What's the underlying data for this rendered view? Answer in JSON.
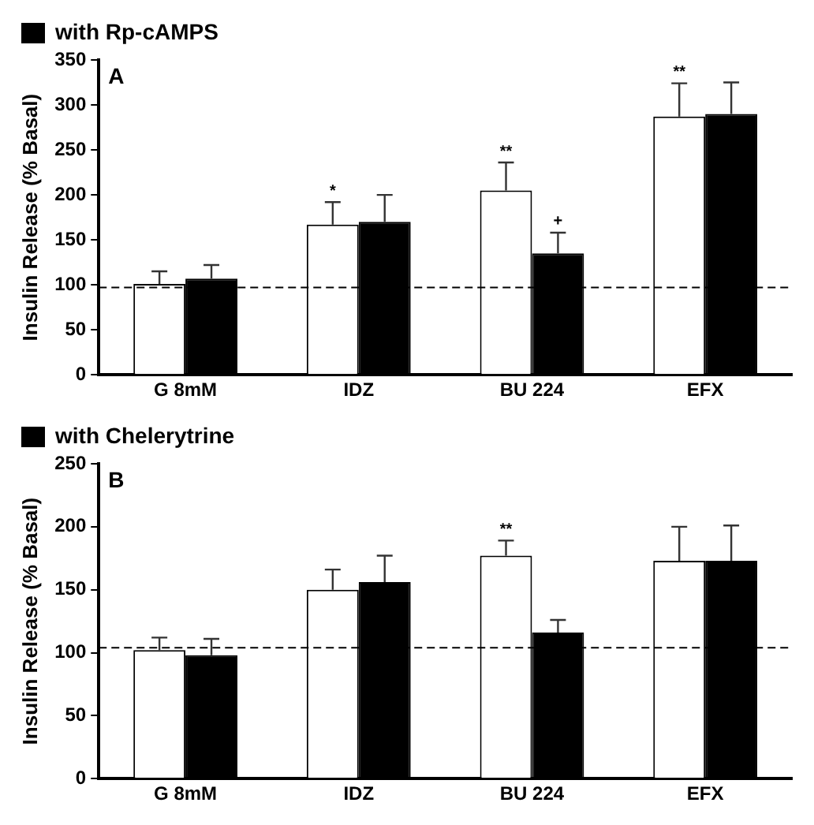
{
  "chart_data": [
    {
      "type": "bar",
      "ylabel": "Insulin Release (% Basal)",
      "categories": [
        "G 8mM",
        "IDZ",
        "BU 224",
        "EFX"
      ],
      "ylim": [
        0,
        350
      ],
      "yticks": [
        0,
        50,
        100,
        150,
        200,
        250,
        300,
        350
      ],
      "grid": false,
      "legend": "top left",
      "series": [
        {
          "color": "#ffffff",
          "values": [
            101,
            167,
            205,
            287
          ],
          "errors": [
            [
              101,
              115
            ],
            [
              167,
              192
            ],
            [
              205,
              236
            ],
            [
              287,
              324
            ]
          ]
        },
        {
          "name": "with Rp-cAMPS",
          "color": "#000000",
          "values": [
            107,
            170,
            135,
            290
          ],
          "errors": [
            [
              107,
              122
            ],
            [
              170,
              200
            ],
            [
              135,
              158
            ],
            [
              290,
              325
            ]
          ]
        }
      ],
      "ref_lines": [
        {
          "axis": "y",
          "value": 97,
          "line_style": "dashed",
          "color": "#000000"
        }
      ],
      "annotations": [
        "A",
        {
          "text": "*",
          "x": "IDZ",
          "y": 167
        },
        {
          "text": "**",
          "x": "BU 224",
          "y": 205
        },
        {
          "text": "+",
          "x": "BU 224",
          "y": 135
        },
        {
          "text": "**",
          "x": "EFX",
          "y": 287
        }
      ]
    },
    {
      "type": "bar",
      "ylabel": "Insulin Release (% Basal)",
      "categories": [
        "G 8mM",
        "IDZ",
        "BU 224",
        "EFX"
      ],
      "ylim": [
        0,
        250
      ],
      "yticks": [
        0,
        50,
        100,
        150,
        200,
        250
      ],
      "grid": false,
      "legend": "top left",
      "series": [
        {
          "color": "#ffffff",
          "values": [
            102,
            150,
            177,
            173
          ],
          "errors": [
            [
              102,
              112
            ],
            [
              150,
              166
            ],
            [
              177,
              189
            ],
            [
              173,
              200
            ]
          ]
        },
        {
          "name": "with Chelerytrine",
          "color": "#000000",
          "values": [
            98,
            156,
            116,
            173
          ],
          "errors": [
            [
              98,
              111
            ],
            [
              156,
              177
            ],
            [
              116,
              126
            ],
            [
              173,
              201
            ]
          ]
        }
      ],
      "ref_lines": [
        {
          "axis": "y",
          "value": 104,
          "line_style": "dashed",
          "color": "#000000"
        }
      ],
      "annotations": [
        "B",
        {
          "text": "**",
          "x": "BU 224",
          "y": 177
        }
      ]
    }
  ]
}
